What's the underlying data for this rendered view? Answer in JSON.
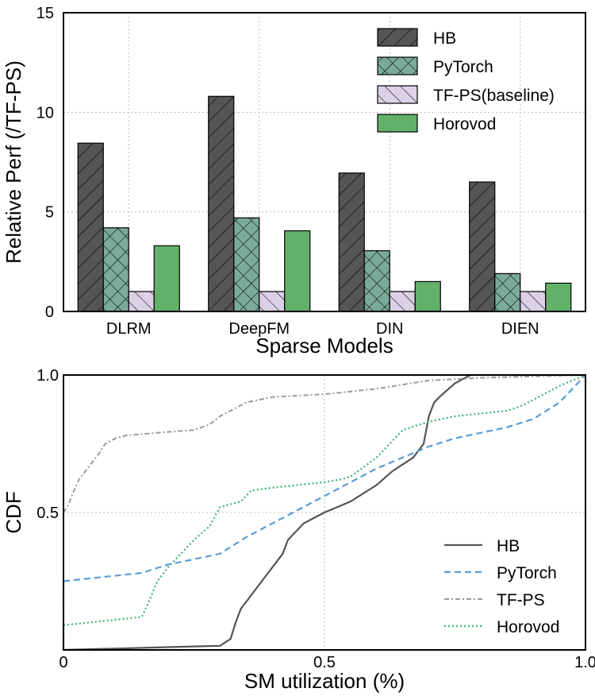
{
  "chart_data": [
    {
      "type": "bar",
      "xlabel": "Sparse Models",
      "ylabel": "Relative Perf (/TF-PS)",
      "categories": [
        "DLRM",
        "DeepFM",
        "DIN",
        "DIEN"
      ],
      "ylim": [
        0,
        15
      ],
      "yticks": [
        0,
        5,
        10,
        15
      ],
      "grid": true,
      "legend_position": "top-right",
      "series": [
        {
          "name": "HB",
          "values": [
            8.45,
            10.8,
            6.95,
            6.5
          ],
          "color": "#555555",
          "pattern": "diagonal-hatch"
        },
        {
          "name": "PyTorch",
          "values": [
            4.2,
            4.7,
            3.05,
            1.9
          ],
          "color": "#7aaa9a",
          "pattern": "cross-hatch"
        },
        {
          "name": "TF-PS(baseline)",
          "values": [
            1.0,
            1.0,
            1.0,
            1.0
          ],
          "color": "#dcd0e6",
          "pattern": "diagonal-hatch"
        },
        {
          "name": "Horovod",
          "values": [
            3.3,
            4.05,
            1.5,
            1.42
          ],
          "color": "#63b06a",
          "pattern": "solid"
        }
      ]
    },
    {
      "type": "line",
      "xlabel": "SM utilization (%)",
      "ylabel": "CDF",
      "xlim": [
        0,
        1.0
      ],
      "ylim": [
        0,
        1.0
      ],
      "xticks": [
        0,
        0.5,
        1.0
      ],
      "xtick_labels": [
        "0",
        "0.5",
        "1.0"
      ],
      "yticks": [
        0.5,
        1.0
      ],
      "ytick_labels": [
        "0.5",
        "1.0"
      ],
      "grid": true,
      "legend_position": "bottom-right",
      "series": [
        {
          "name": "HB",
          "color": "#555555",
          "style": "solid",
          "x": [
            0,
            0.1,
            0.2,
            0.3,
            0.32,
            0.33,
            0.34,
            0.36,
            0.38,
            0.4,
            0.42,
            0.43,
            0.44,
            0.46,
            0.5,
            0.55,
            0.6,
            0.63,
            0.67,
            0.69,
            0.7,
            0.71,
            0.72,
            0.75,
            0.78,
            0.9,
            1.0
          ],
          "y": [
            0.0,
            0.005,
            0.01,
            0.015,
            0.04,
            0.1,
            0.15,
            0.2,
            0.25,
            0.3,
            0.35,
            0.4,
            0.42,
            0.46,
            0.5,
            0.54,
            0.6,
            0.65,
            0.7,
            0.75,
            0.85,
            0.9,
            0.92,
            0.97,
            1.0,
            1.0,
            1.0
          ]
        },
        {
          "name": "PyTorch",
          "color": "#5b9bd5",
          "style": "dashed",
          "x": [
            0,
            0.05,
            0.15,
            0.2,
            0.3,
            0.35,
            0.4,
            0.45,
            0.5,
            0.55,
            0.6,
            0.65,
            0.7,
            0.75,
            0.8,
            0.85,
            0.9,
            0.95,
            1.0
          ],
          "y": [
            0.25,
            0.26,
            0.28,
            0.31,
            0.35,
            0.41,
            0.46,
            0.51,
            0.56,
            0.61,
            0.66,
            0.7,
            0.74,
            0.77,
            0.79,
            0.81,
            0.84,
            0.9,
            1.0
          ]
        },
        {
          "name": "TF-PS",
          "color": "#999999",
          "style": "dashdot",
          "x": [
            0,
            0.01,
            0.02,
            0.03,
            0.05,
            0.07,
            0.08,
            0.1,
            0.12,
            0.18,
            0.25,
            0.28,
            0.3,
            0.35,
            0.4,
            0.5,
            0.6,
            0.7,
            0.8,
            0.9,
            1.0
          ],
          "y": [
            0.5,
            0.53,
            0.58,
            0.62,
            0.67,
            0.72,
            0.75,
            0.77,
            0.78,
            0.79,
            0.8,
            0.82,
            0.85,
            0.9,
            0.92,
            0.93,
            0.95,
            0.98,
            0.99,
            0.995,
            1.0
          ]
        },
        {
          "name": "Horovod",
          "color": "#3cb371",
          "style": "dotted",
          "x": [
            0,
            0.05,
            0.1,
            0.15,
            0.16,
            0.18,
            0.2,
            0.25,
            0.28,
            0.3,
            0.34,
            0.36,
            0.4,
            0.45,
            0.5,
            0.53,
            0.55,
            0.6,
            0.65,
            0.7,
            0.75,
            0.8,
            0.85,
            0.88,
            0.95,
            1.0
          ],
          "y": [
            0.09,
            0.1,
            0.11,
            0.12,
            0.16,
            0.25,
            0.3,
            0.4,
            0.45,
            0.52,
            0.54,
            0.58,
            0.59,
            0.6,
            0.61,
            0.62,
            0.63,
            0.7,
            0.8,
            0.83,
            0.85,
            0.86,
            0.87,
            0.89,
            0.96,
            1.0
          ]
        }
      ]
    }
  ]
}
